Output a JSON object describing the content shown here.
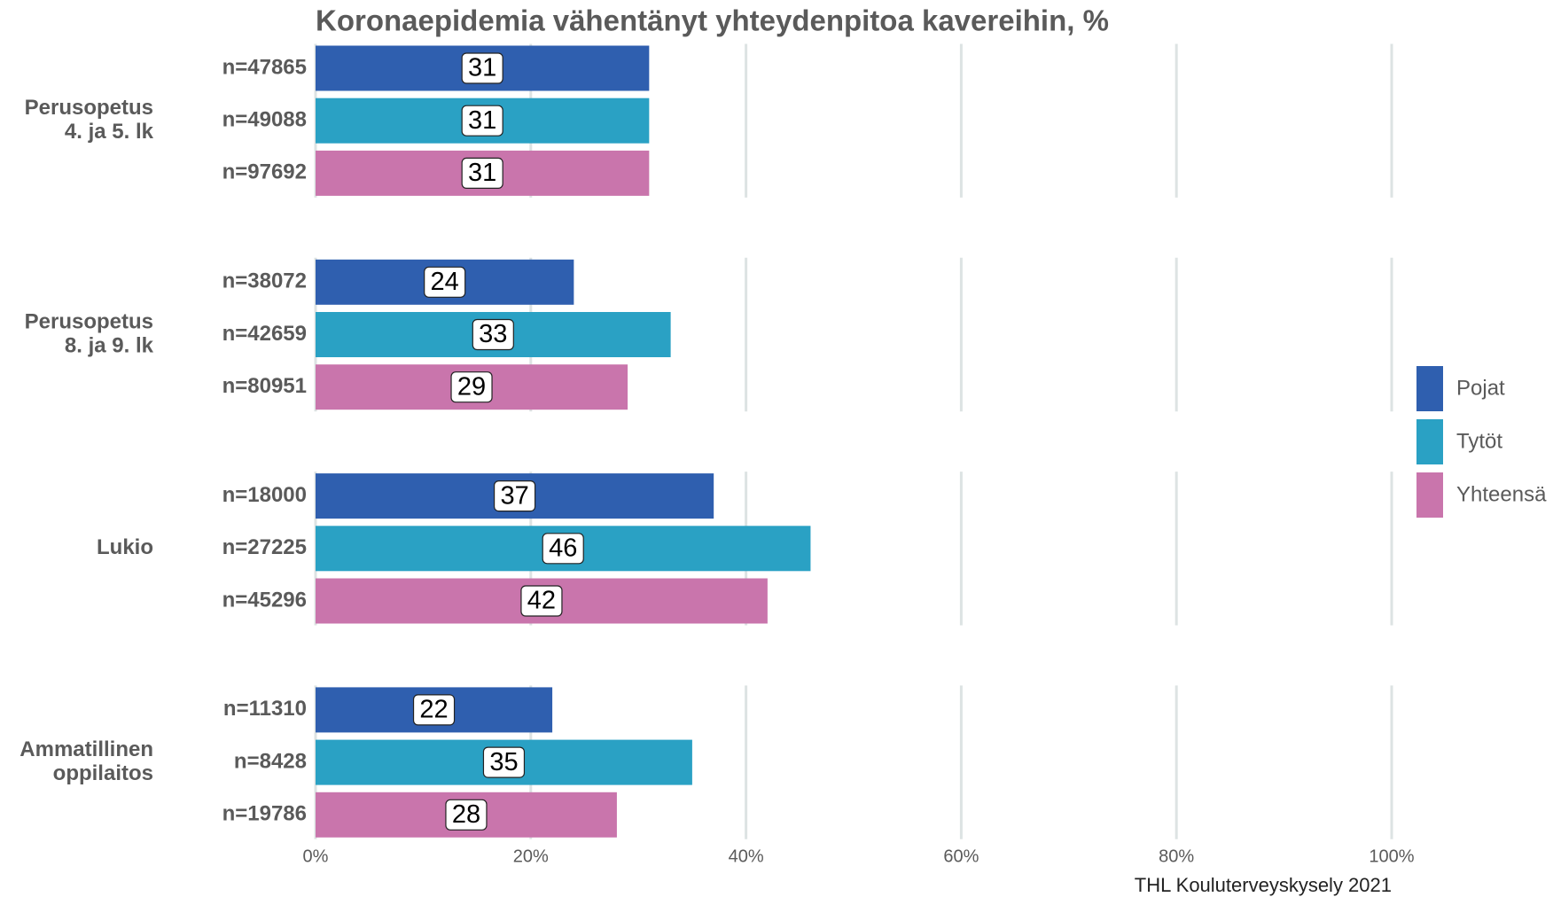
{
  "chart_data": {
    "type": "bar",
    "orientation": "horizontal",
    "title": "Koronaepidemia vähentänyt yhteydenpitoa kavereihin, %",
    "source": "THL Kouluterveyskysely 2021",
    "categories": [
      [
        "Perusopetus",
        "4. ja 5. lk"
      ],
      [
        "Perusopetus",
        "8. ja 9. lk"
      ],
      [
        "Lukio"
      ],
      [
        "Ammatillinen",
        "oppilaitos"
      ]
    ],
    "series": [
      {
        "name": "Pojat",
        "color": "#2f5faf",
        "values": [
          31,
          24,
          37,
          22
        ],
        "n_labels": [
          "n=47865",
          "n=38072",
          "n=18000",
          "n=11310"
        ]
      },
      {
        "name": "Tytöt",
        "color": "#2aa1c4",
        "values": [
          31,
          33,
          46,
          35
        ],
        "n_labels": [
          "n=49088",
          "n=42659",
          "n=27225",
          "n=8428"
        ]
      },
      {
        "name": "Yhteensä",
        "color": "#c975ac",
        "values": [
          31,
          29,
          42,
          28
        ],
        "n_labels": [
          "n=97692",
          "n=80951",
          "n=45296",
          "n=19786"
        ]
      }
    ],
    "xlim": [
      0,
      100
    ],
    "xticks": [
      {
        "value": 0,
        "label": "0%"
      },
      {
        "value": 20,
        "label": "20%"
      },
      {
        "value": 40,
        "label": "40%"
      },
      {
        "value": 60,
        "label": "60%"
      },
      {
        "value": 80,
        "label": "80%"
      },
      {
        "value": 100,
        "label": "100%"
      }
    ],
    "grid": true,
    "legend": "right"
  }
}
